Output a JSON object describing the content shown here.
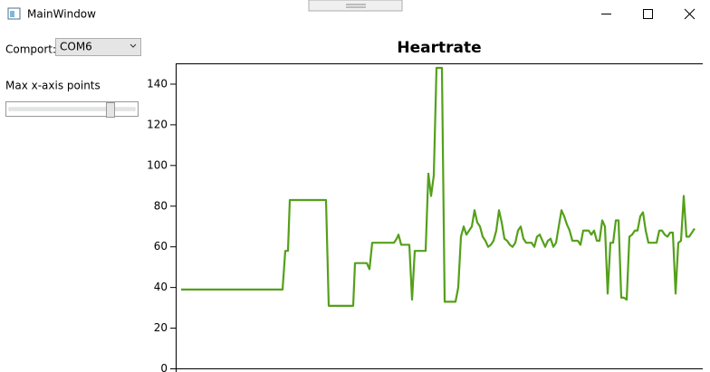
{
  "window": {
    "title": "MainWindow"
  },
  "controls": {
    "comport_label": "Comport:",
    "comport_value": "COM6",
    "slider_label": "Max x-axis points"
  },
  "chart_data": {
    "type": "line",
    "title": "Heartrate",
    "x": [
      6,
      118,
      121,
      124,
      126,
      166,
      169,
      196,
      198,
      211,
      214,
      217,
      241,
      244,
      246,
      249,
      258,
      261,
      264,
      276,
      279,
      282,
      285,
      288,
      294,
      297,
      309,
      312,
      315,
      318,
      321,
      324,
      327,
      330,
      333,
      336,
      339,
      342,
      345,
      348,
      351,
      354,
      357,
      360,
      363,
      366,
      369,
      372,
      375,
      378,
      381,
      384,
      387,
      390,
      393,
      396,
      399,
      402,
      405,
      408,
      411,
      414,
      417,
      420,
      423,
      426,
      429,
      432,
      435,
      438,
      441,
      444,
      447,
      450,
      453,
      456,
      459,
      462,
      465,
      468,
      471,
      474,
      477,
      480,
      483,
      486,
      489,
      492,
      495,
      498,
      501,
      504,
      507,
      510,
      513,
      516,
      519,
      522,
      525,
      528,
      531,
      534,
      537,
      540,
      543,
      546,
      549,
      552,
      555,
      558,
      561,
      564,
      567,
      570,
      573
    ],
    "series": [
      {
        "name": "Heartrate",
        "color": "#54a01a",
        "values": [
          39,
          39,
          58,
          58,
          83,
          83,
          31,
          31,
          52,
          52,
          49,
          62,
          62,
          64,
          66,
          61,
          61,
          34,
          58,
          58,
          96,
          85,
          95,
          148,
          148,
          33,
          33,
          40,
          65,
          70,
          66,
          68,
          70,
          78,
          72,
          70,
          65,
          63,
          60,
          61,
          63,
          68,
          78,
          72,
          64,
          63,
          61,
          60,
          62,
          68,
          70,
          64,
          62,
          62,
          62,
          60,
          65,
          66,
          63,
          60,
          63,
          64,
          60,
          62,
          70,
          78,
          75,
          71,
          68,
          63,
          63,
          63,
          61,
          68,
          68,
          68,
          66,
          68,
          63,
          63,
          73,
          70,
          37,
          62,
          62,
          73,
          73,
          35,
          35,
          34,
          65,
          66,
          68,
          68,
          75,
          77,
          68,
          62,
          62,
          62,
          62,
          68,
          68,
          66,
          65,
          67,
          67,
          37,
          62,
          63,
          85,
          65,
          65,
          67,
          69
        ]
      }
    ],
    "xlim": [
      0,
      582
    ],
    "ylim": [
      0,
      150
    ],
    "yticks": [
      0,
      20,
      40,
      60,
      80,
      100,
      120,
      140
    ]
  }
}
